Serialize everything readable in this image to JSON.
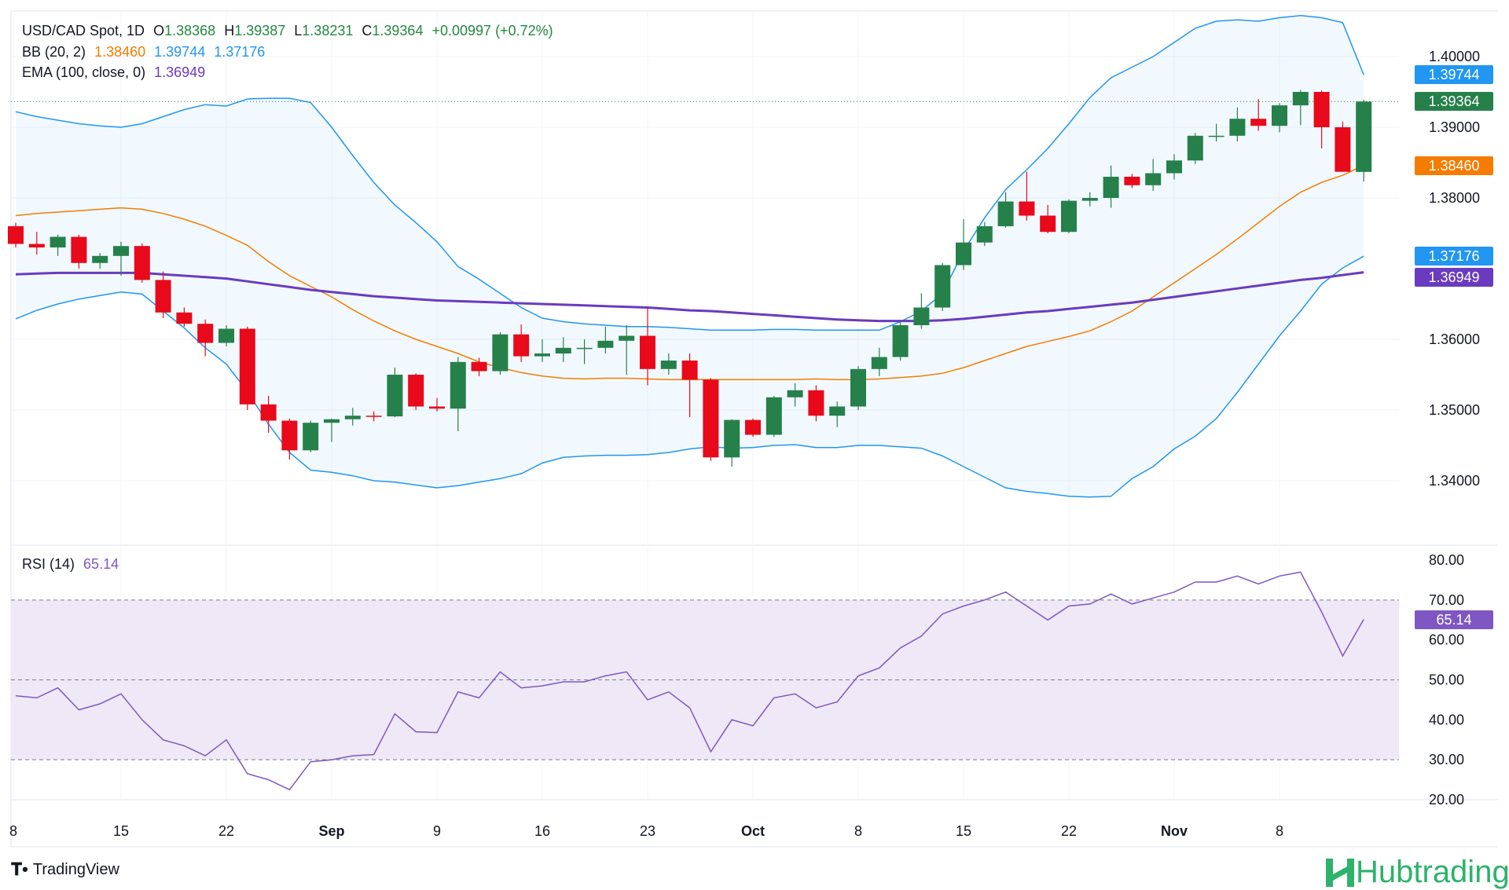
{
  "header": {
    "symbol": "USD/CAD Spot, 1D",
    "open_label": "O",
    "open": "1.38368",
    "high_label": "H",
    "high": "1.39387",
    "low_label": "L",
    "low": "1.38231",
    "close_label": "C",
    "close": "1.39364",
    "change": "+0.00997 (+0.72%)"
  },
  "legend": {
    "bb_label": "BB (20, 2)",
    "bb_mid": "1.38460",
    "bb_upper": "1.39744",
    "bb_lower": "1.37176",
    "ema_label": "EMA (100, close, 0)",
    "ema": "1.36949",
    "rsi_label": "RSI (14)",
    "rsi": "65.14"
  },
  "badges": {
    "bb_upper": "1.39744",
    "close": "1.39364",
    "bb_mid": "1.38460",
    "bb_lower": "1.37176",
    "ema": "1.36949",
    "rsi": "65.14"
  },
  "colors": {
    "up": "#26804a",
    "down": "#e8091b",
    "bb_band": "#2196f3",
    "bb_basis": "#f57c00",
    "ema": "#6a3bbf",
    "rsi": "#7e57c2",
    "rsi_fill": "#efe9f7"
  },
  "footer": {
    "brand": "TradingView",
    "watermark": "Hubtrading"
  },
  "chart_data": [
    {
      "type": "candlestick",
      "title": "USD/CAD Spot, 1D",
      "ylim": [
        1.333,
        1.4055
      ],
      "y_ticks": [
        "1.40000",
        "1.39000",
        "1.38000",
        "1.36000",
        "1.35000",
        "1.34000"
      ],
      "x_ticks": [
        "8",
        "15",
        "22",
        "Sep",
        "9",
        "16",
        "23",
        "Oct",
        "8",
        "15",
        "22",
        "Nov",
        "8"
      ],
      "candles": [
        {
          "o": 1.376,
          "h": 1.3765,
          "l": 1.373,
          "c": 1.3735
        },
        {
          "o": 1.3735,
          "h": 1.3752,
          "l": 1.372,
          "c": 1.373
        },
        {
          "o": 1.373,
          "h": 1.3748,
          "l": 1.3718,
          "c": 1.3745
        },
        {
          "o": 1.3745,
          "h": 1.3748,
          "l": 1.37,
          "c": 1.3708
        },
        {
          "o": 1.3708,
          "h": 1.3722,
          "l": 1.37,
          "c": 1.3718
        },
        {
          "o": 1.3718,
          "h": 1.3738,
          "l": 1.369,
          "c": 1.3732
        },
        {
          "o": 1.3732,
          "h": 1.3736,
          "l": 1.368,
          "c": 1.3684
        },
        {
          "o": 1.3684,
          "h": 1.3696,
          "l": 1.363,
          "c": 1.3638
        },
        {
          "o": 1.3638,
          "h": 1.3645,
          "l": 1.3618,
          "c": 1.3622
        },
        {
          "o": 1.3622,
          "h": 1.3628,
          "l": 1.3576,
          "c": 1.3595
        },
        {
          "o": 1.3595,
          "h": 1.362,
          "l": 1.359,
          "c": 1.3615
        },
        {
          "o": 1.3615,
          "h": 1.3618,
          "l": 1.35,
          "c": 1.3508
        },
        {
          "o": 1.3508,
          "h": 1.352,
          "l": 1.3468,
          "c": 1.3485
        },
        {
          "o": 1.3485,
          "h": 1.3488,
          "l": 1.343,
          "c": 1.3443
        },
        {
          "o": 1.3443,
          "h": 1.3485,
          "l": 1.344,
          "c": 1.3482
        },
        {
          "o": 1.3482,
          "h": 1.3488,
          "l": 1.3455,
          "c": 1.3487
        },
        {
          "o": 1.3487,
          "h": 1.3503,
          "l": 1.3478,
          "c": 1.3492
        },
        {
          "o": 1.3492,
          "h": 1.3498,
          "l": 1.3484,
          "c": 1.3491
        },
        {
          "o": 1.3491,
          "h": 1.356,
          "l": 1.349,
          "c": 1.355
        },
        {
          "o": 1.355,
          "h": 1.3552,
          "l": 1.35,
          "c": 1.3505
        },
        {
          "o": 1.3505,
          "h": 1.3517,
          "l": 1.3498,
          "c": 1.3502
        },
        {
          "o": 1.3502,
          "h": 1.3575,
          "l": 1.347,
          "c": 1.3568
        },
        {
          "o": 1.3568,
          "h": 1.3574,
          "l": 1.3548,
          "c": 1.3555
        },
        {
          "o": 1.3555,
          "h": 1.361,
          "l": 1.355,
          "c": 1.3607
        },
        {
          "o": 1.3607,
          "h": 1.3621,
          "l": 1.3568,
          "c": 1.3576
        },
        {
          "o": 1.3576,
          "h": 1.36,
          "l": 1.3568,
          "c": 1.358
        },
        {
          "o": 1.358,
          "h": 1.3603,
          "l": 1.3568,
          "c": 1.3588
        },
        {
          "o": 1.3588,
          "h": 1.36,
          "l": 1.3565,
          "c": 1.3588
        },
        {
          "o": 1.3588,
          "h": 1.3618,
          "l": 1.358,
          "c": 1.3598
        },
        {
          "o": 1.3598,
          "h": 1.362,
          "l": 1.355,
          "c": 1.3605
        },
        {
          "o": 1.3605,
          "h": 1.3645,
          "l": 1.3535,
          "c": 1.3558
        },
        {
          "o": 1.3558,
          "h": 1.358,
          "l": 1.355,
          "c": 1.357
        },
        {
          "o": 1.357,
          "h": 1.358,
          "l": 1.349,
          "c": 1.3543
        },
        {
          "o": 1.3543,
          "h": 1.3545,
          "l": 1.3428,
          "c": 1.3433
        },
        {
          "o": 1.3433,
          "h": 1.3487,
          "l": 1.342,
          "c": 1.3486
        },
        {
          "o": 1.3486,
          "h": 1.3488,
          "l": 1.3462,
          "c": 1.3465
        },
        {
          "o": 1.3465,
          "h": 1.352,
          "l": 1.3462,
          "c": 1.3518
        },
        {
          "o": 1.3518,
          "h": 1.3538,
          "l": 1.3505,
          "c": 1.3528
        },
        {
          "o": 1.3528,
          "h": 1.3535,
          "l": 1.3484,
          "c": 1.3492
        },
        {
          "o": 1.3492,
          "h": 1.3512,
          "l": 1.3476,
          "c": 1.3505
        },
        {
          "o": 1.3505,
          "h": 1.3562,
          "l": 1.35,
          "c": 1.3558
        },
        {
          "o": 1.3558,
          "h": 1.3588,
          "l": 1.3548,
          "c": 1.3575
        },
        {
          "o": 1.3575,
          "h": 1.3626,
          "l": 1.357,
          "c": 1.362
        },
        {
          "o": 1.362,
          "h": 1.3665,
          "l": 1.3615,
          "c": 1.3645
        },
        {
          "o": 1.3645,
          "h": 1.3708,
          "l": 1.364,
          "c": 1.3705
        },
        {
          "o": 1.3705,
          "h": 1.377,
          "l": 1.3698,
          "c": 1.3737
        },
        {
          "o": 1.3737,
          "h": 1.3766,
          "l": 1.3732,
          "c": 1.376
        },
        {
          "o": 1.376,
          "h": 1.3808,
          "l": 1.3758,
          "c": 1.3795
        },
        {
          "o": 1.3795,
          "h": 1.3837,
          "l": 1.3768,
          "c": 1.3775
        },
        {
          "o": 1.3775,
          "h": 1.379,
          "l": 1.375,
          "c": 1.3752
        },
        {
          "o": 1.3752,
          "h": 1.3798,
          "l": 1.375,
          "c": 1.3796
        },
        {
          "o": 1.3796,
          "h": 1.3808,
          "l": 1.3788,
          "c": 1.38
        },
        {
          "o": 1.38,
          "h": 1.3846,
          "l": 1.3786,
          "c": 1.383
        },
        {
          "o": 1.383,
          "h": 1.3834,
          "l": 1.3814,
          "c": 1.3818
        },
        {
          "o": 1.3818,
          "h": 1.3855,
          "l": 1.381,
          "c": 1.3835
        },
        {
          "o": 1.3835,
          "h": 1.3862,
          "l": 1.3826,
          "c": 1.3853
        },
        {
          "o": 1.3853,
          "h": 1.3892,
          "l": 1.3848,
          "c": 1.3888
        },
        {
          "o": 1.3888,
          "h": 1.3905,
          "l": 1.388,
          "c": 1.3888
        },
        {
          "o": 1.3888,
          "h": 1.3928,
          "l": 1.388,
          "c": 1.3912
        },
        {
          "o": 1.3912,
          "h": 1.394,
          "l": 1.3895,
          "c": 1.3902
        },
        {
          "o": 1.3902,
          "h": 1.3934,
          "l": 1.3893,
          "c": 1.3931
        },
        {
          "o": 1.3931,
          "h": 1.3953,
          "l": 1.3903,
          "c": 1.395
        },
        {
          "o": 1.395,
          "h": 1.3952,
          "l": 1.387,
          "c": 1.39
        },
        {
          "o": 1.39,
          "h": 1.3908,
          "l": 1.3837,
          "c": 1.3837
        },
        {
          "o": 1.38368,
          "h": 1.39387,
          "l": 1.38231,
          "c": 1.39364
        }
      ],
      "series": [
        {
          "name": "BB upper",
          "values": [
            1.3922,
            1.3915,
            1.391,
            1.3905,
            1.3902,
            1.39,
            1.3905,
            1.3915,
            1.3925,
            1.3932,
            1.393,
            1.394,
            1.3941,
            1.3941,
            1.3935,
            1.39,
            1.386,
            1.3822,
            1.379,
            1.3765,
            1.3738,
            1.3703,
            1.3685,
            1.3665,
            1.3645,
            1.363,
            1.3625,
            1.3622,
            1.362,
            1.3618,
            1.3618,
            1.3617,
            1.3615,
            1.3613,
            1.3613,
            1.3613,
            1.3614,
            1.3614,
            1.3613,
            1.3613,
            1.3613,
            1.3613,
            1.3625,
            1.364,
            1.3665,
            1.3725,
            1.3772,
            1.3812,
            1.384,
            1.387,
            1.3905,
            1.3942,
            1.397,
            1.3985,
            1.4,
            1.402,
            1.404,
            1.405,
            1.4052,
            1.405,
            1.4055,
            1.4058,
            1.4055,
            1.4048,
            1.3974
          ]
        },
        {
          "name": "BB basis",
          "values": [
            1.3775,
            1.3778,
            1.378,
            1.3782,
            1.3784,
            1.3786,
            1.3784,
            1.3778,
            1.377,
            1.376,
            1.3747,
            1.3733,
            1.371,
            1.369,
            1.3675,
            1.366,
            1.3642,
            1.3626,
            1.3612,
            1.36,
            1.359,
            1.358,
            1.3568,
            1.356,
            1.3553,
            1.3548,
            1.3545,
            1.3544,
            1.3545,
            1.3545,
            1.3544,
            1.3543,
            1.3543,
            1.3543,
            1.3543,
            1.3543,
            1.3543,
            1.3543,
            1.3544,
            1.3543,
            1.3543,
            1.3544,
            1.3546,
            1.3548,
            1.3552,
            1.356,
            1.357,
            1.358,
            1.359,
            1.3597,
            1.3604,
            1.3612,
            1.3625,
            1.364,
            1.366,
            1.368,
            1.37,
            1.372,
            1.3742,
            1.3765,
            1.3788,
            1.3808,
            1.3822,
            1.3832,
            1.3846
          ]
        },
        {
          "name": "BB lower",
          "values": [
            1.3629,
            1.3641,
            1.365,
            1.3657,
            1.3662,
            1.3667,
            1.3664,
            1.364,
            1.3616,
            1.3588,
            1.3565,
            1.3526,
            1.348,
            1.344,
            1.3415,
            1.3412,
            1.3407,
            1.34,
            1.3398,
            1.3394,
            1.339,
            1.3393,
            1.3398,
            1.3403,
            1.341,
            1.3425,
            1.3433,
            1.3435,
            1.3436,
            1.3436,
            1.3437,
            1.344,
            1.3445,
            1.3448,
            1.3446,
            1.3447,
            1.345,
            1.3451,
            1.3447,
            1.3447,
            1.345,
            1.345,
            1.3448,
            1.3446,
            1.3435,
            1.342,
            1.3405,
            1.339,
            1.3385,
            1.3382,
            1.3378,
            1.3377,
            1.3378,
            1.3403,
            1.342,
            1.3445,
            1.3463,
            1.3488,
            1.3525,
            1.3565,
            1.3605,
            1.364,
            1.3678,
            1.3701,
            1.37176
          ]
        },
        {
          "name": "EMA 100",
          "values": [
            1.3692,
            1.3693,
            1.3694,
            1.3694,
            1.3694,
            1.3694,
            1.3694,
            1.3692,
            1.369,
            1.3688,
            1.3686,
            1.3682,
            1.3678,
            1.3674,
            1.367,
            1.3667,
            1.3664,
            1.3661,
            1.3659,
            1.3657,
            1.3655,
            1.3654,
            1.3653,
            1.3652,
            1.3651,
            1.365,
            1.3649,
            1.3648,
            1.3647,
            1.3646,
            1.3645,
            1.3643,
            1.3641,
            1.364,
            1.3638,
            1.3636,
            1.3634,
            1.3632,
            1.363,
            1.3628,
            1.3627,
            1.3626,
            1.3626,
            1.3626,
            1.3627,
            1.3629,
            1.3632,
            1.3635,
            1.3638,
            1.364,
            1.3643,
            1.3646,
            1.3649,
            1.3652,
            1.3656,
            1.366,
            1.3664,
            1.3668,
            1.3672,
            1.3676,
            1.368,
            1.3684,
            1.3687,
            1.3691,
            1.36949
          ]
        }
      ]
    },
    {
      "type": "line",
      "title": "RSI (14)",
      "ylim": [
        15,
        85
      ],
      "y_ticks": [
        "80.00",
        "70.00",
        "60.00",
        "50.00",
        "40.00",
        "30.00",
        "20.00"
      ],
      "reference_lines": [
        70,
        50,
        30
      ],
      "series": [
        {
          "name": "RSI (14)",
          "values": [
            46,
            45.5,
            48,
            42.5,
            44,
            46.5,
            40,
            35,
            33.5,
            31,
            35,
            26.5,
            25,
            22.5,
            29.5,
            30,
            31,
            31.3,
            41.5,
            37,
            36.8,
            47,
            45.5,
            52,
            48,
            48.5,
            49.5,
            49.5,
            51,
            52,
            45,
            47,
            43,
            32,
            40,
            38.5,
            45.5,
            46.5,
            43,
            44.5,
            51,
            53,
            58,
            61,
            66.5,
            68.5,
            70,
            72,
            68.5,
            65,
            68.5,
            69,
            71.5,
            69,
            70.5,
            72,
            74.5,
            74.5,
            76,
            74,
            76,
            77,
            67,
            56,
            65.14
          ]
        }
      ]
    }
  ]
}
